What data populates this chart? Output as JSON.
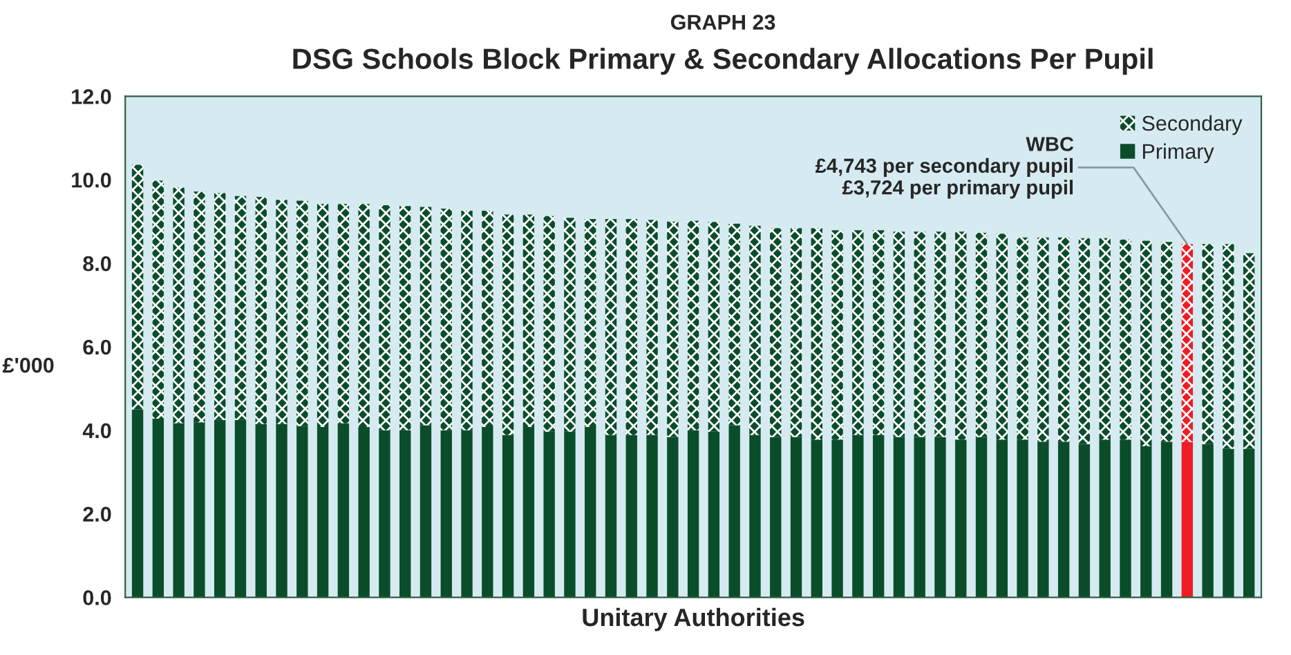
{
  "chart_data": {
    "type": "bar",
    "stacked": true,
    "title": "GRAPH 23",
    "subtitle": "DSG Schools Block Primary & Secondary Allocations Per Pupil",
    "xlabel": "Unitary Authorities",
    "ylabel": "£'000",
    "categories": [
      null,
      null,
      null,
      null,
      null,
      null,
      null,
      null,
      null,
      null,
      null,
      null,
      null,
      null,
      null,
      null,
      null,
      null,
      null,
      null,
      null,
      null,
      null,
      null,
      null,
      null,
      null,
      null,
      null,
      null,
      null,
      null,
      null,
      null,
      null,
      null,
      null,
      null,
      null,
      null,
      null,
      null,
      null,
      null,
      null,
      null,
      null,
      null,
      null,
      null,
      null,
      null,
      null,
      null,
      null
    ],
    "series": [
      {
        "name": "Primary",
        "color": "#0b4d2a",
        "colors": [
          "#0b4d2a",
          "#0b4d2a",
          "#0b4d2a",
          "#0b4d2a",
          "#0b4d2a",
          "#0b4d2a",
          "#0b4d2a",
          "#0b4d2a",
          "#0b4d2a",
          "#0b4d2a",
          "#0b4d2a",
          "#0b4d2a",
          "#0b4d2a",
          "#0b4d2a",
          "#0b4d2a",
          "#0b4d2a",
          "#0b4d2a",
          "#0b4d2a",
          "#0b4d2a",
          "#0b4d2a",
          "#0b4d2a",
          "#0b4d2a",
          "#0b4d2a",
          "#0b4d2a",
          "#0b4d2a",
          "#0b4d2a",
          "#0b4d2a",
          "#0b4d2a",
          "#0b4d2a",
          "#0b4d2a",
          "#0b4d2a",
          "#0b4d2a",
          "#0b4d2a",
          "#0b4d2a",
          "#0b4d2a",
          "#0b4d2a",
          "#0b4d2a",
          "#0b4d2a",
          "#0b4d2a",
          "#0b4d2a",
          "#0b4d2a",
          "#0b4d2a",
          "#0b4d2a",
          "#0b4d2a",
          "#0b4d2a",
          "#0b4d2a",
          "#0b4d2a",
          "#0b4d2a",
          "#0b4d2a",
          "#0b4d2a",
          "#0b4d2a",
          "#ee1c25",
          "#0b4d2a",
          "#0b4d2a",
          "#0b4d2a"
        ],
        "values": [
          4.5,
          4.28,
          4.17,
          4.19,
          4.25,
          4.25,
          4.15,
          4.15,
          4.1,
          4.08,
          4.17,
          4.08,
          4.0,
          4.0,
          4.12,
          4.0,
          4.0,
          4.08,
          3.89,
          4.08,
          3.97,
          3.97,
          4.08,
          3.89,
          3.89,
          3.89,
          3.84,
          4.0,
          3.97,
          4.12,
          3.89,
          3.84,
          3.84,
          3.78,
          3.78,
          3.89,
          3.89,
          3.84,
          3.84,
          3.84,
          3.78,
          3.84,
          3.78,
          3.78,
          3.73,
          3.73,
          3.67,
          3.78,
          3.78,
          3.62,
          3.73,
          3.72,
          3.67,
          3.56,
          3.56
        ]
      },
      {
        "name": "Secondary",
        "color": "#0b4d2a",
        "colors": [
          "#0b4d2a",
          "#0b4d2a",
          "#0b4d2a",
          "#0b4d2a",
          "#0b4d2a",
          "#0b4d2a",
          "#0b4d2a",
          "#0b4d2a",
          "#0b4d2a",
          "#0b4d2a",
          "#0b4d2a",
          "#0b4d2a",
          "#0b4d2a",
          "#0b4d2a",
          "#0b4d2a",
          "#0b4d2a",
          "#0b4d2a",
          "#0b4d2a",
          "#0b4d2a",
          "#0b4d2a",
          "#0b4d2a",
          "#0b4d2a",
          "#0b4d2a",
          "#0b4d2a",
          "#0b4d2a",
          "#0b4d2a",
          "#0b4d2a",
          "#0b4d2a",
          "#0b4d2a",
          "#0b4d2a",
          "#0b4d2a",
          "#0b4d2a",
          "#0b4d2a",
          "#0b4d2a",
          "#0b4d2a",
          "#0b4d2a",
          "#0b4d2a",
          "#0b4d2a",
          "#0b4d2a",
          "#0b4d2a",
          "#0b4d2a",
          "#0b4d2a",
          "#0b4d2a",
          "#0b4d2a",
          "#0b4d2a",
          "#0b4d2a",
          "#0b4d2a",
          "#0b4d2a",
          "#0b4d2a",
          "#0b4d2a",
          "#0b4d2a",
          "#ee1c25",
          "#0b4d2a",
          "#0b4d2a",
          "#0b4d2a"
        ],
        "values": [
          5.86,
          5.7,
          5.64,
          5.53,
          5.43,
          5.36,
          5.44,
          5.37,
          5.4,
          5.34,
          5.25,
          5.34,
          5.39,
          5.37,
          5.23,
          5.31,
          5.26,
          5.18,
          5.28,
          5.09,
          5.16,
          5.12,
          4.98,
          5.17,
          5.17,
          5.15,
          5.16,
          5.02,
          5.02,
          4.83,
          5.01,
          5.0,
          5.0,
          5.06,
          5.01,
          4.9,
          4.9,
          4.92,
          4.92,
          4.92,
          4.98,
          4.89,
          4.93,
          4.84,
          4.89,
          4.89,
          4.93,
          4.82,
          4.79,
          4.92,
          4.78,
          4.74,
          4.79,
          4.9,
          4.68
        ]
      }
    ],
    "ylim": [
      0,
      12
    ],
    "yticks": [
      {
        "value": 0,
        "label": "0.0"
      },
      {
        "value": 2,
        "label": "2.0"
      },
      {
        "value": 4,
        "label": "4.0"
      },
      {
        "value": 6,
        "label": "6.0"
      },
      {
        "value": 8,
        "label": "8.0"
      },
      {
        "value": 10,
        "label": "10.0"
      },
      {
        "value": 12,
        "label": "12.0"
      }
    ],
    "annotations": [
      {
        "text": "WBC\n£4,743 per secondary pupil\n£3,724 per primary pupil",
        "y": 8.46
      }
    ],
    "legend": "top right",
    "grid": false
  }
}
